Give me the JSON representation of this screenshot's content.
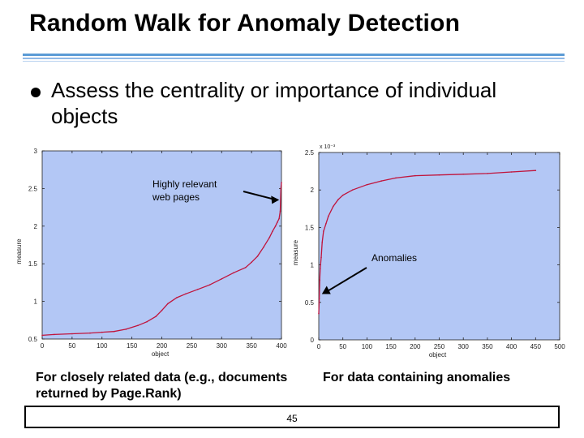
{
  "slide": {
    "title": "Random Walk for Anomaly Detection",
    "bullet": "Assess the centrality or importance of individual objects",
    "caption_left": "For closely related data (e.g., documents returned by Page.Rank)",
    "caption_right": "For data containing  anomalies",
    "page_number": "45"
  },
  "colors": {
    "plot_bg": "#b3c7f5",
    "curve": "#c0143c",
    "rule": "#5b9bd5",
    "axis": "#222222"
  },
  "chart_data": [
    {
      "type": "line",
      "xlabel": "object",
      "ylabel": "measure",
      "xlim": [
        0,
        400
      ],
      "ylim": [
        0.5,
        3
      ],
      "xticks": [
        0,
        50,
        100,
        150,
        200,
        250,
        300,
        350,
        400
      ],
      "yticks": [
        0.5,
        1,
        1.5,
        2,
        2.5,
        3
      ],
      "ytick_labels": [
        "0.5",
        "1",
        "1.5",
        "2",
        "2.5",
        "3"
      ],
      "annotation": "Highly relevant web pages",
      "annotation_target": [
        399,
        2.35
      ],
      "series": [
        {
          "x": [
            0,
            20,
            50,
            80,
            100,
            120,
            140,
            160,
            175,
            190,
            200,
            210,
            225,
            240,
            260,
            280,
            300,
            320,
            340,
            350,
            360,
            370,
            380,
            385,
            390,
            393,
            396,
            398,
            399,
            400
          ],
          "values": [
            0.55,
            0.56,
            0.57,
            0.58,
            0.59,
            0.6,
            0.63,
            0.68,
            0.73,
            0.8,
            0.88,
            0.97,
            1.05,
            1.1,
            1.16,
            1.22,
            1.3,
            1.38,
            1.45,
            1.52,
            1.6,
            1.72,
            1.85,
            1.93,
            2.0,
            2.05,
            2.1,
            2.2,
            2.5,
            2.58
          ]
        }
      ]
    },
    {
      "type": "line",
      "xlabel": "object",
      "ylabel": "measure",
      "xlim": [
        0,
        500
      ],
      "ylim": [
        0,
        2.5
      ],
      "xticks": [
        0,
        50,
        100,
        150,
        200,
        250,
        300,
        350,
        400,
        450,
        500
      ],
      "yticks": [
        0,
        0.5,
        1,
        1.5,
        2,
        2.5
      ],
      "ytick_labels": [
        "0",
        "0.5",
        "1",
        "1.5",
        "2",
        "2.5"
      ],
      "y_multiplier": "x 10⁻³",
      "annotation": "Anomalies",
      "annotation_target": [
        3,
        0.6
      ],
      "series": [
        {
          "x": [
            0,
            1,
            2,
            3,
            5,
            7,
            10,
            15,
            20,
            30,
            40,
            50,
            70,
            100,
            130,
            160,
            200,
            250,
            300,
            350,
            400,
            450
          ],
          "values": [
            0.35,
            0.55,
            0.8,
            0.95,
            1.1,
            1.3,
            1.45,
            1.55,
            1.65,
            1.78,
            1.87,
            1.93,
            2.0,
            2.07,
            2.12,
            2.16,
            2.19,
            2.2,
            2.21,
            2.22,
            2.24,
            2.26
          ]
        }
      ]
    }
  ]
}
